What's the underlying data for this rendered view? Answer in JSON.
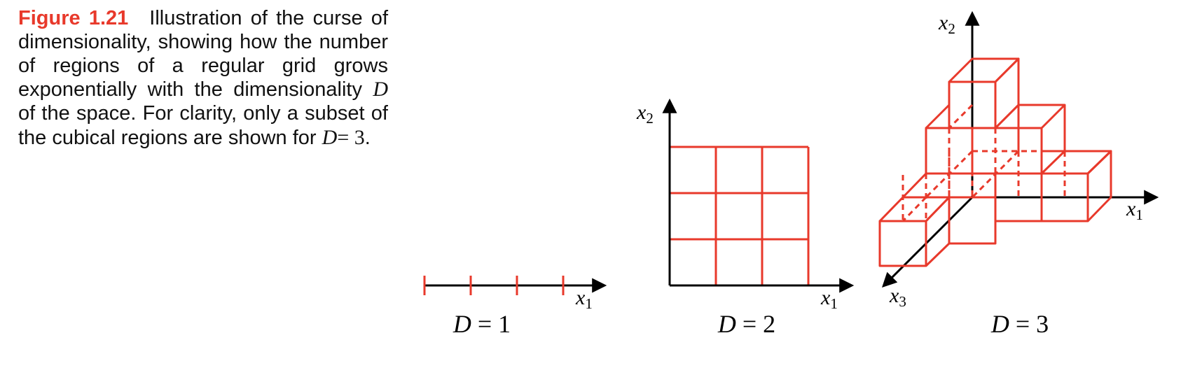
{
  "caption": {
    "label": "Figure 1.21",
    "text": "Illustration of the curse of dimensionality, showing how the number of regions of a regular grid grows exponentially with the dimensionality",
    "var_D": "D",
    "text2": "of the space. For clarity, only a subset of the cubical regions are shown for",
    "eq_lhs": "D",
    "eq_rhs": "= 3",
    "end": "."
  },
  "panels": {
    "d1": {
      "label_var": "D",
      "label_rest": " = 1",
      "axis_x": "x",
      "axis_x_sub": "1"
    },
    "d2": {
      "label_var": "D",
      "label_rest": " = 2",
      "axis_x": "x",
      "axis_x_sub": "1",
      "axis_y": "x",
      "axis_y_sub": "2"
    },
    "d3": {
      "label_var": "D",
      "label_rest": " = 3",
      "axis_x1": "x",
      "axis_x1_sub": "1",
      "axis_x2": "x",
      "axis_x2_sub": "2",
      "axis_x3": "x",
      "axis_x3_sub": "3"
    }
  },
  "colors": {
    "grid": "#e8392b",
    "axis": "#000000",
    "label": "#e8392b"
  }
}
